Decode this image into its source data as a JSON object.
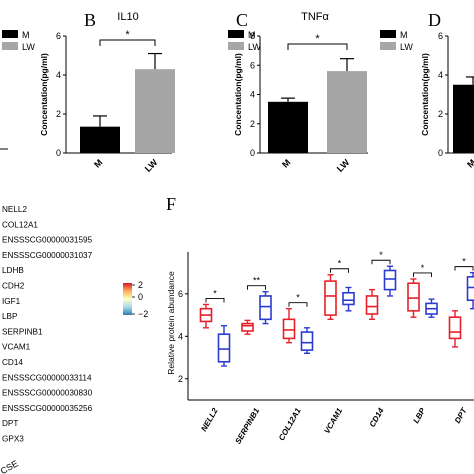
{
  "panels": {
    "B": {
      "letter": "B"
    },
    "C": {
      "letter": "C"
    },
    "D": {
      "letter": "D"
    },
    "F": {
      "letter": "F"
    }
  },
  "heatmap": {
    "genes": [
      "NELL2",
      "COL12A1",
      "ENSSSCG00000031595",
      "ENSSSCG00000031037",
      "LDHB",
      "CDH2",
      "IGF1",
      "LBP",
      "SERPINB1",
      "VCAM1",
      "CD14",
      "ENSSSCG00000033114",
      "ENSSSCG00000030830",
      "ENSSSCG00000035256",
      "DPT",
      "GPX3"
    ],
    "colorbar_ticks": [
      "2",
      "0",
      "−2"
    ],
    "colorbar_values": [
      2,
      0,
      -2
    ],
    "colors": {
      "high": "#d7191c",
      "mid_high": "#fdae61",
      "mid": "#ffffbf",
      "mid_low": "#abd9e9",
      "low": "#2c7bb6"
    },
    "corner_text": "CSE"
  },
  "chart_data": [
    {
      "panel": "B",
      "type": "bar",
      "title": "IL10",
      "ylabel": "Concentation(pg/ml)",
      "categories": [
        "M",
        "LW"
      ],
      "values": [
        1.35,
        4.3
      ],
      "errors": [
        0.55,
        0.8
      ],
      "ylim": [
        0,
        6
      ],
      "yticks": [
        "0",
        "2",
        "4",
        "6"
      ],
      "legend": [
        {
          "name": "M",
          "color": "#000000"
        },
        {
          "name": "LW",
          "color": "#a6a6a6"
        }
      ],
      "significance": "*"
    },
    {
      "panel": "C",
      "type": "bar",
      "title": "TNFα",
      "ylabel": "Concentation(pg/ml)",
      "categories": [
        "M",
        "LW"
      ],
      "values": [
        3.5,
        5.6
      ],
      "errors": [
        0.25,
        0.85
      ],
      "ylim": [
        0,
        8
      ],
      "yticks": [
        "0",
        "2",
        "4",
        "6",
        "8"
      ],
      "legend": [
        {
          "name": "M",
          "color": "#000000"
        },
        {
          "name": "LW",
          "color": "#a6a6a6"
        }
      ],
      "significance": "*"
    },
    {
      "panel": "D",
      "type": "bar",
      "title": "",
      "ylabel": "Concentation(pg/ml)",
      "categories": [
        "M"
      ],
      "values": [
        3.5
      ],
      "errors": [
        0.4
      ],
      "ylim": [
        0,
        6
      ],
      "yticks": [
        "0",
        "2",
        "4",
        "6"
      ],
      "legend": [
        {
          "name": "M",
          "color": "#000000"
        },
        {
          "name": "LW",
          "color": "#a6a6a6"
        }
      ]
    },
    {
      "panel": "F",
      "type": "box",
      "ylabel": "Relative protein abundance",
      "categories": [
        "NELL2",
        "SERPINB1",
        "COL12A1",
        "VCAM1",
        "CD14",
        "LBP",
        "DPT"
      ],
      "ylim": [
        1,
        7.5
      ],
      "yticks": [
        "2",
        "4",
        "6"
      ],
      "significance": [
        "*",
        "**",
        "*",
        "*",
        "*",
        "*",
        "*"
      ],
      "series": [
        {
          "name": "red",
          "color": "#e8202a",
          "boxes": [
            {
              "min": 4.4,
              "q1": 4.7,
              "median": 5.0,
              "q3": 5.3,
              "max": 5.5
            },
            {
              "min": 4.1,
              "q1": 4.25,
              "median": 4.5,
              "q3": 4.6,
              "max": 4.75
            },
            {
              "min": 3.7,
              "q1": 3.9,
              "median": 4.3,
              "q3": 4.8,
              "max": 5.3
            },
            {
              "min": 4.8,
              "q1": 5.0,
              "median": 5.9,
              "q3": 6.6,
              "max": 6.9
            },
            {
              "min": 4.8,
              "q1": 5.05,
              "median": 5.4,
              "q3": 5.9,
              "max": 6.2
            },
            {
              "min": 4.9,
              "q1": 5.2,
              "median": 5.8,
              "q3": 6.5,
              "max": 6.7
            },
            {
              "min": 3.5,
              "q1": 3.9,
              "median": 4.2,
              "q3": 4.9,
              "max": 5.2
            }
          ]
        },
        {
          "name": "blue",
          "color": "#2b3bd1",
          "boxes": [
            {
              "min": 2.6,
              "q1": 2.8,
              "median": 3.4,
              "q3": 4.1,
              "max": 4.5
            },
            {
              "min": 4.6,
              "q1": 4.8,
              "median": 5.4,
              "q3": 5.9,
              "max": 6.1
            },
            {
              "min": 3.2,
              "q1": 3.35,
              "median": 3.7,
              "q3": 4.2,
              "max": 4.4
            },
            {
              "min": 5.2,
              "q1": 5.5,
              "median": 5.7,
              "q3": 6.05,
              "max": 6.3
            },
            {
              "min": 5.9,
              "q1": 6.2,
              "median": 6.7,
              "q3": 7.1,
              "max": 7.3
            },
            {
              "min": 4.9,
              "q1": 5.05,
              "median": 5.3,
              "q3": 5.55,
              "max": 5.75
            },
            {
              "min": 5.3,
              "q1": 5.7,
              "median": 6.3,
              "q3": 6.8,
              "max": 7.0
            }
          ]
        }
      ]
    }
  ]
}
